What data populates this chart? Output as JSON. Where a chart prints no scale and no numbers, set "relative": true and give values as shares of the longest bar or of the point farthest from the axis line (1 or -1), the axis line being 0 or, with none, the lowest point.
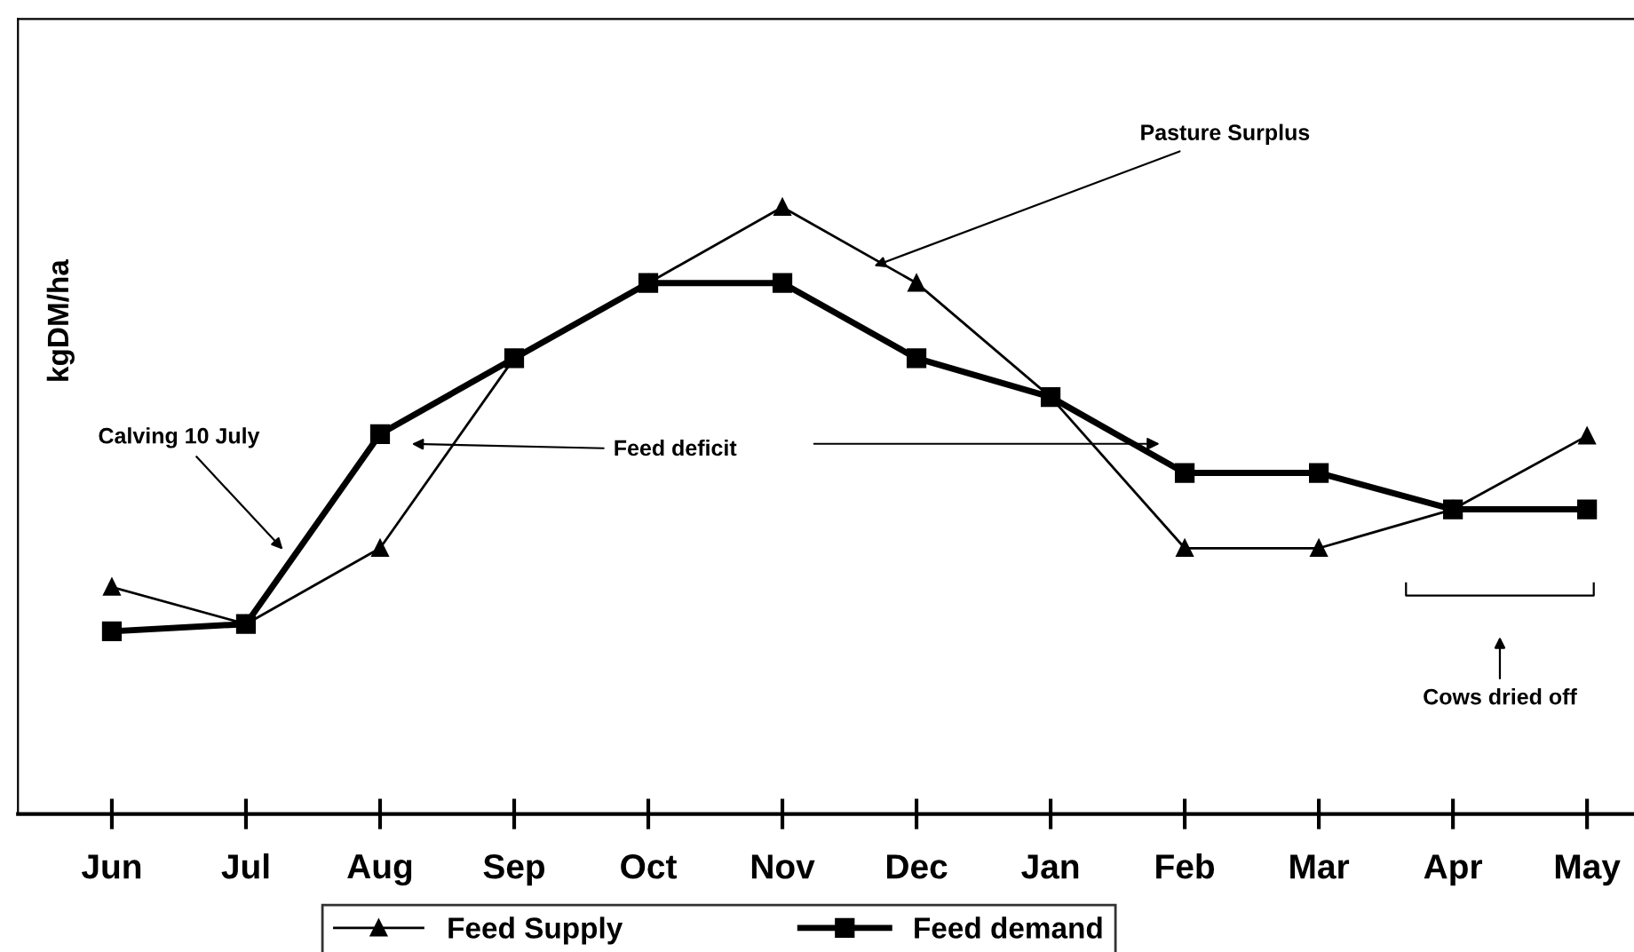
{
  "chart_data": {
    "type": "line",
    "relative": true,
    "ylabel": "kgDM/ha",
    "categories": [
      "Jun",
      "Jul",
      "Aug",
      "Sep",
      "Oct",
      "Nov",
      "Dec",
      "Jan",
      "Feb",
      "Mar",
      "Apr",
      "May"
    ],
    "series": [
      {
        "name": "Feed Supply",
        "color": "#000000",
        "marker": "triangle",
        "values": [
          0.374,
          0.313,
          0.438,
          0.751,
          0.875,
          1.0,
          0.875,
          0.687,
          0.438,
          0.438,
          0.502,
          0.623
        ]
      },
      {
        "name": "Feed demand",
        "color": "#000000",
        "marker": "square",
        "values": [
          0.301,
          0.313,
          0.626,
          0.751,
          0.875,
          0.875,
          0.751,
          0.687,
          0.562,
          0.562,
          0.502,
          0.502
        ]
      }
    ],
    "annotations": [
      "Pasture Surplus",
      "Calving 10 July",
      "Feed deficit",
      "Cows dried off"
    ],
    "legend": "bottom",
    "tick_labels": "x",
    "grid": false,
    "line_style": "solid"
  }
}
